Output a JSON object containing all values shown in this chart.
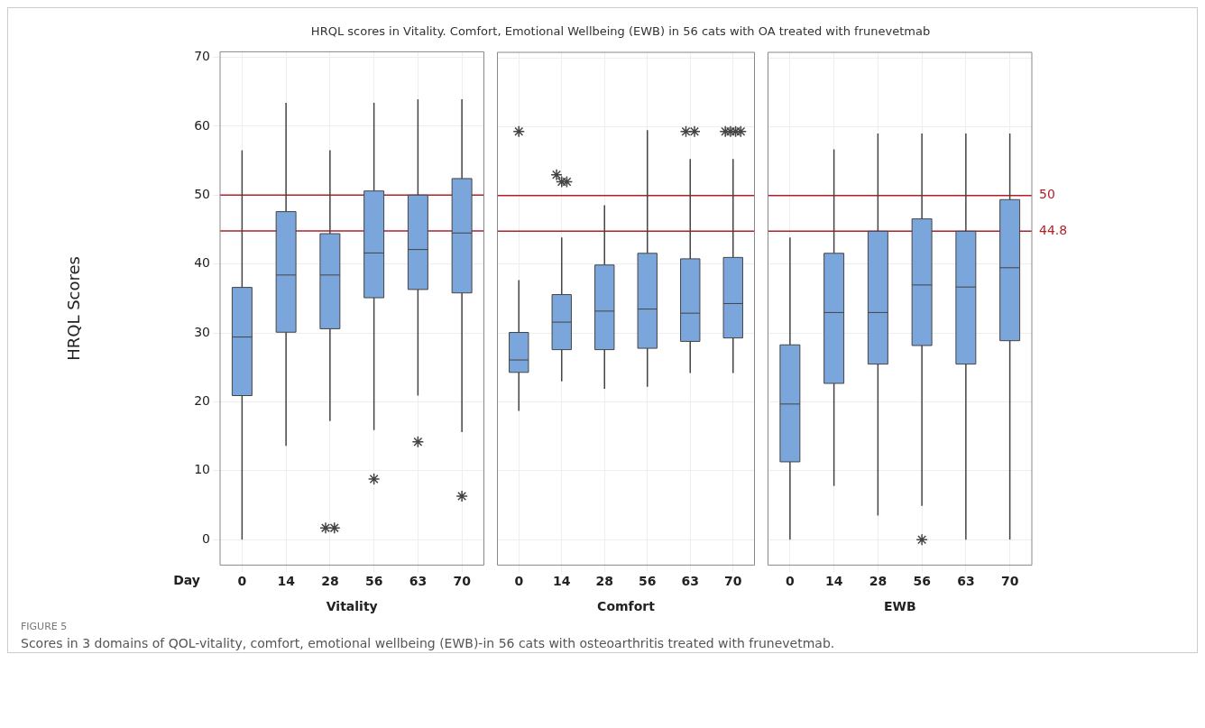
{
  "chart_data": [
    {
      "type": "box",
      "title": "HRQL scores in Vitality. Comfort, Emotional Wellbeing (EWB) in 56 cats with OA treated with frunevetmab",
      "ylabel": "HRQL Scores",
      "xlabel": "Vitality",
      "categories": [
        "0",
        "14",
        "28",
        "56",
        "63",
        "70"
      ],
      "color": "#7aa6dc",
      "boxes": [
        {
          "low": 0,
          "q1": 20.9,
          "median": 29.4,
          "q3": 36.6,
          "high": 56.5
        },
        {
          "low": 13.6,
          "q1": 30.1,
          "median": 38.4,
          "q3": 47.6,
          "high": 63.4
        },
        {
          "low": 17.2,
          "q1": 30.6,
          "median": 38.4,
          "q3": 44.4,
          "high": 56.5,
          "outliers": [
            1.7,
            1.7
          ]
        },
        {
          "low": 15.9,
          "q1": 35.1,
          "median": 41.6,
          "q3": 50.6,
          "high": 63.4,
          "outliers": [
            8.8
          ]
        },
        {
          "low": 20.9,
          "q1": 36.3,
          "median": 42.1,
          "q3": 50.0,
          "high": 63.9,
          "outliers": [
            14.2
          ]
        },
        {
          "low": 15.6,
          "q1": 35.8,
          "median": 44.5,
          "q3": 52.4,
          "high": 63.9,
          "outliers": [
            6.3
          ]
        }
      ],
      "marker": "star",
      "ylim": [
        -3.7,
        70.8
      ],
      "yticks": [
        0,
        10,
        20,
        30,
        40,
        50,
        60,
        70
      ],
      "grid": true,
      "ref_lines": [
        {
          "axis": "y",
          "value": 50,
          "color": "#b0202a"
        },
        {
          "axis": "y",
          "value": 44.8,
          "color": "#b0202a"
        }
      ],
      "annotations": [
        "Day",
        "FIGURE 5",
        "Scores in 3 domains of QOL-vitality, comfort, emotional wellbeing (EWB)-in 56 cats with osteoarthritis treated with frunevetmab."
      ]
    },
    {
      "type": "box",
      "xlabel": "Comfort",
      "categories": [
        "0",
        "14",
        "28",
        "56",
        "63",
        "70"
      ],
      "color": "#7aa6dc",
      "boxes": [
        {
          "low": 18.7,
          "q1": 24.3,
          "median": 26.1,
          "q3": 30.1,
          "high": 37.7,
          "outliers": [
            59.3
          ]
        },
        {
          "low": 23.0,
          "q1": 27.6,
          "median": 31.6,
          "q3": 35.6,
          "high": 43.9,
          "outliers": [
            53.0,
            52.0,
            52.0
          ]
        },
        {
          "low": 21.9,
          "q1": 27.6,
          "median": 33.2,
          "q3": 39.9,
          "high": 48.6
        },
        {
          "low": 22.2,
          "q1": 27.8,
          "median": 33.5,
          "q3": 41.6,
          "high": 59.5
        },
        {
          "low": 24.2,
          "q1": 28.8,
          "median": 32.9,
          "q3": 40.8,
          "high": 55.3,
          "outliers": [
            59.3,
            59.3
          ]
        },
        {
          "low": 24.2,
          "q1": 29.3,
          "median": 34.3,
          "q3": 41.0,
          "high": 55.3,
          "outliers": [
            59.3,
            59.3,
            59.3,
            59.3
          ]
        }
      ],
      "marker": "star",
      "ylim": [
        -3.7,
        70.8
      ],
      "yticks": [
        0,
        10,
        20,
        30,
        40,
        50,
        60,
        70
      ],
      "grid": true,
      "tick_labels": "x",
      "ref_lines": [
        {
          "axis": "y",
          "value": 50,
          "color": "#b0202a"
        },
        {
          "axis": "y",
          "value": 44.8,
          "color": "#b0202a"
        }
      ]
    },
    {
      "type": "box",
      "xlabel": "EWB",
      "categories": [
        "0",
        "14",
        "28",
        "56",
        "63",
        "70"
      ],
      "color": "#7aa6dc",
      "boxes": [
        {
          "low": 0,
          "q1": 11.3,
          "median": 19.7,
          "q3": 28.3,
          "high": 43.9
        },
        {
          "low": 7.8,
          "q1": 22.7,
          "median": 33.0,
          "q3": 41.6,
          "high": 56.7
        },
        {
          "low": 3.5,
          "q1": 25.5,
          "median": 33.0,
          "q3": 44.8,
          "high": 59.0
        },
        {
          "low": 4.9,
          "q1": 28.2,
          "median": 37.0,
          "q3": 46.6,
          "high": 59.0,
          "outliers": [
            0
          ]
        },
        {
          "low": 0,
          "q1": 25.5,
          "median": 36.7,
          "q3": 44.8,
          "high": 59.0
        },
        {
          "low": 0,
          "q1": 28.9,
          "median": 39.5,
          "q3": 49.4,
          "high": 59.0
        }
      ],
      "marker": "star",
      "ylim": [
        -3.7,
        70.8
      ],
      "yticks": [
        0,
        10,
        20,
        30,
        40,
        50,
        60,
        70
      ],
      "grid": true,
      "tick_labels": "x",
      "ref_lines": [
        {
          "axis": "y",
          "value": 50,
          "label": "50",
          "color": "#b0202a"
        },
        {
          "axis": "y",
          "value": 44.8,
          "label": "44.8",
          "color": "#b0202a"
        }
      ]
    }
  ]
}
